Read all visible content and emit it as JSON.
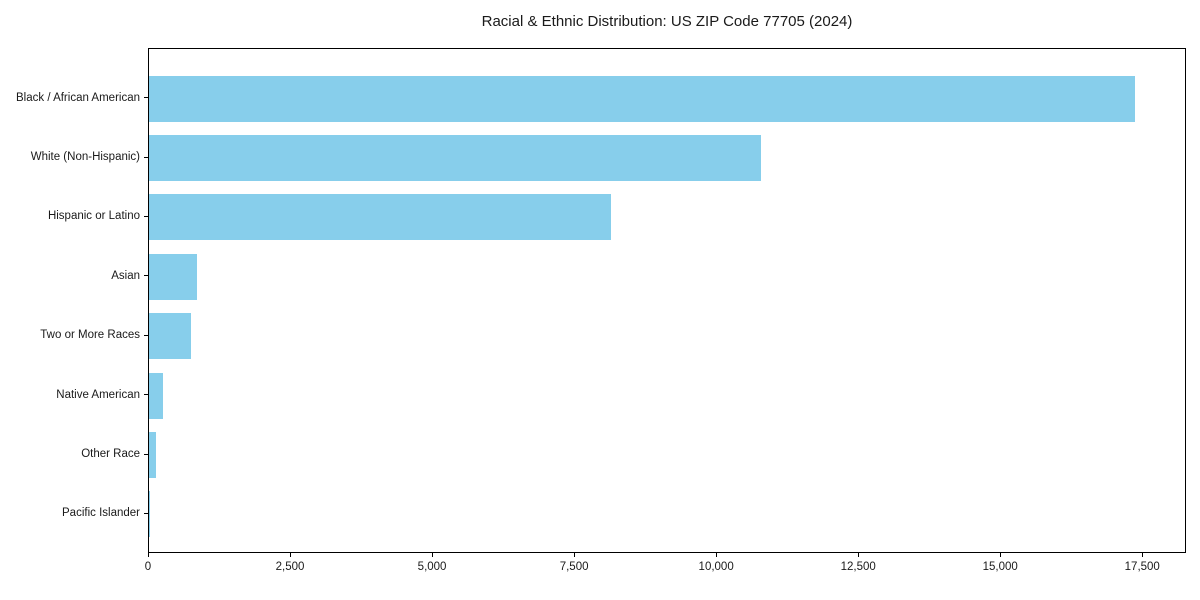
{
  "title": "Racial & Ethnic Distribution: US ZIP Code 77705 (2024)",
  "chart_data": {
    "type": "bar",
    "orientation": "horizontal",
    "title": "Racial & Ethnic Distribution: US ZIP Code 77705 (2024)",
    "categories": [
      "Black / African American",
      "White (Non-Hispanic)",
      "Hispanic or Latino",
      "Asian",
      "Two or More Races",
      "Native American",
      "Other Race",
      "Pacific Islander"
    ],
    "values": [
      17380,
      10790,
      8150,
      850,
      740,
      250,
      120,
      15
    ],
    "xlabel": "",
    "ylabel": "",
    "xlim": [
      0,
      18270
    ],
    "x_ticks": [
      0,
      2500,
      5000,
      7500,
      10000,
      12500,
      15000,
      17500
    ],
    "x_tick_labels": [
      "0",
      "2,500",
      "5,000",
      "7,500",
      "10,000",
      "12,500",
      "15,000",
      "17,500"
    ],
    "grid": false,
    "legend": "none",
    "bar_color": "#87CEEB",
    "axis_color": "#000000",
    "text_color": "#1a1a1a",
    "background_color": "#ffffff"
  }
}
